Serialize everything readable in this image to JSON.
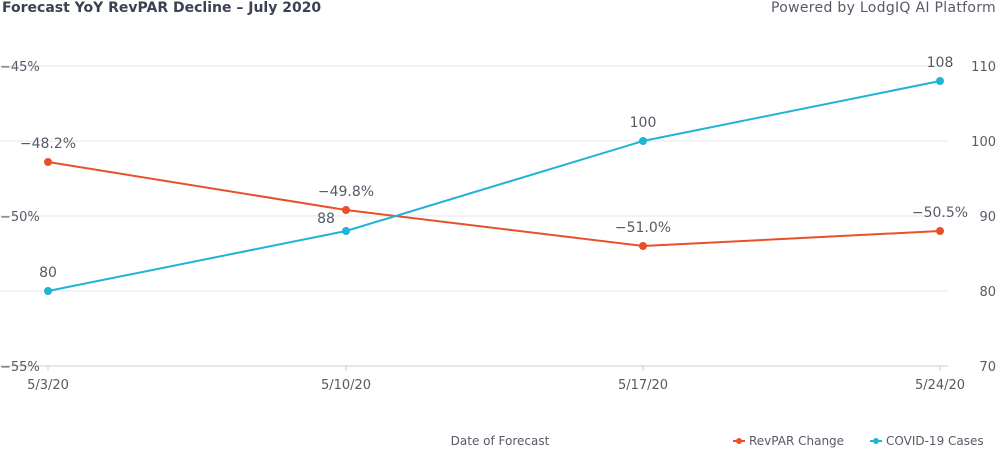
{
  "chart_data": {
    "type": "line",
    "title": "Forecast YoY RevPAR Decline – July 2020",
    "credit": "Powered by LodgIQ AI Platform",
    "xlabel": "Date of Forecast",
    "categories": [
      "5/3/20",
      "5/10/20",
      "5/17/20",
      "5/24/20"
    ],
    "y_left": {
      "min": -55,
      "max": -45,
      "ticks": [
        -45,
        -50,
        -55
      ],
      "tick_labels": [
        "-45%",
        "-50%",
        "-55%"
      ]
    },
    "y_right": {
      "min": 70,
      "max": 110,
      "ticks": [
        110,
        100,
        90,
        80,
        70
      ],
      "tick_labels": [
        "110",
        "100",
        "90",
        "80",
        "70"
      ]
    },
    "grid": true,
    "legend_position": "bottom-right",
    "series": [
      {
        "name": "RevPAR Change",
        "axis": "left",
        "color": "#e8502a",
        "values": [
          -48.2,
          -49.8,
          -51.0,
          -50.5
        ],
        "labels": [
          "-48.2%",
          "-49.8%",
          "-51.0%",
          "-50.5%"
        ]
      },
      {
        "name": "COVID-19 Cases",
        "axis": "right",
        "color": "#1fb3d6",
        "values": [
          80,
          88,
          100,
          108
        ],
        "labels": [
          "80",
          "88",
          "100",
          "108"
        ]
      }
    ]
  }
}
